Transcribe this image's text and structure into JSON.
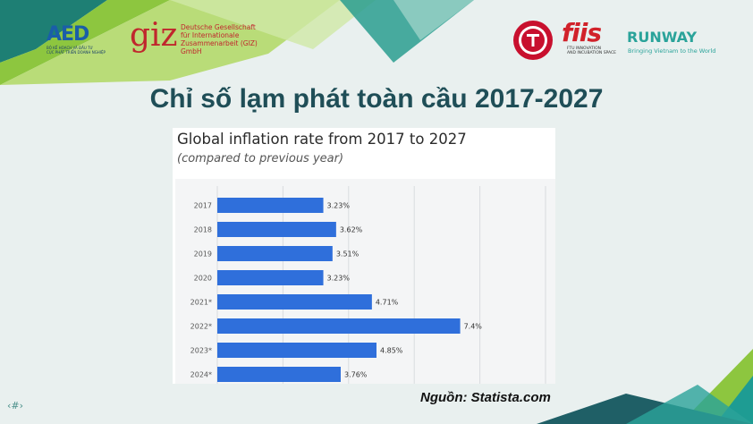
{
  "slide": {
    "title": "Chỉ số lạm phát toàn cầu 2017-2027",
    "source": "Nguồn: Statista.com",
    "page_number": "‹#›"
  },
  "logos": {
    "aed": {
      "text": "AED",
      "subtitle_line1": "BỘ KẾ HOẠCH VÀ ĐẦU TƯ",
      "subtitle_line2": "CỤC PHÁT TRIỂN DOANH NGHIỆP"
    },
    "giz": {
      "text": "giz",
      "desc_line1": "Deutsche Gesellschaft",
      "desc_line2": "für Internationale",
      "desc_line3": "Zusammenarbeit (GIZ) GmbH"
    },
    "ftu": {
      "icon": "ftu-seal-icon"
    },
    "fiis": {
      "text": "fiis",
      "subtitle_line1": "FTU INNOVATION",
      "subtitle_line2": "AND INCUBATION SPACE"
    },
    "runway": {
      "text": "RUNWAY",
      "tagline": "Bringing Vietnam to the World"
    }
  },
  "colors": {
    "bar": "#2f6fdb",
    "title": "#1f4e57",
    "accent_green": "#8dc63f",
    "accent_teal": "#1e9c93"
  },
  "chart_data": {
    "type": "bar",
    "orientation": "horizontal",
    "title": "Global inflation rate from 2017 to 2027",
    "subtitle": "(compared to previous year)",
    "categories": [
      "2017",
      "2018",
      "2019",
      "2020",
      "2021*",
      "2022*",
      "2023*",
      "2024*"
    ],
    "values": [
      3.23,
      3.62,
      3.51,
      3.23,
      4.71,
      7.4,
      4.85,
      3.76
    ],
    "value_labels": [
      "3.23%",
      "3.62%",
      "3.51%",
      "3.23%",
      "4.71%",
      "7.4%",
      "4.85%",
      "3.76%"
    ],
    "xlim": [
      0,
      10
    ],
    "grid": true
  }
}
